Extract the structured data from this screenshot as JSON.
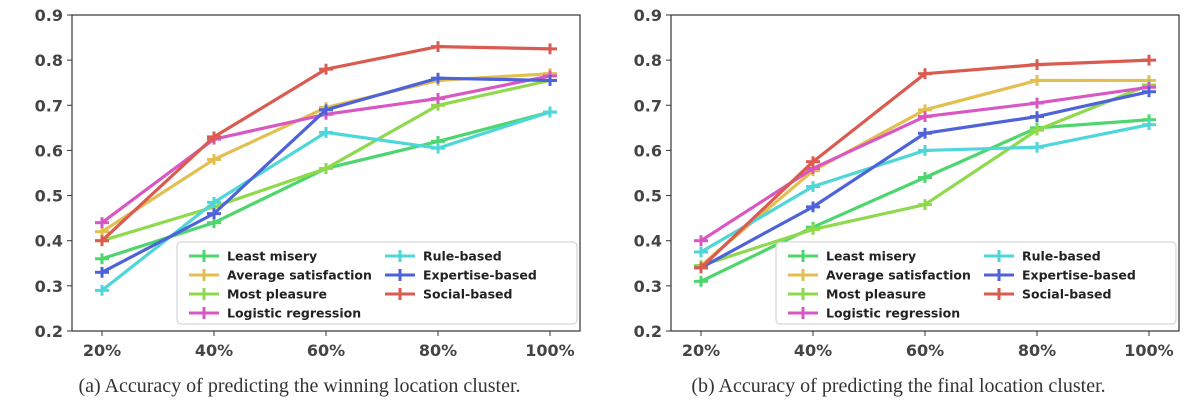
{
  "chart_data": [
    {
      "type": "line",
      "caption": "(a) Accuracy of predicting the winning location cluster.",
      "categories": [
        "20%",
        "40%",
        "60%",
        "80%",
        "100%"
      ],
      "ylim": [
        0.2,
        0.9
      ],
      "yticks": [
        "0.2",
        "0.3",
        "0.4",
        "0.5",
        "0.6",
        "0.7",
        "0.8",
        "0.9"
      ],
      "grid": false,
      "legend_position": "bottom-right",
      "error_bar": 0.012,
      "series": [
        {
          "name": "Least misery",
          "color": "#4dd66e",
          "values": [
            0.36,
            0.44,
            0.56,
            0.62,
            0.685
          ]
        },
        {
          "name": "Average satisfaction",
          "color": "#e3bf50",
          "values": [
            0.42,
            0.58,
            0.695,
            0.755,
            0.77
          ]
        },
        {
          "name": "Most pleasure",
          "color": "#8fd94d",
          "values": [
            0.4,
            0.475,
            0.56,
            0.7,
            0.755
          ]
        },
        {
          "name": "Logistic regression",
          "color": "#d957c2",
          "values": [
            0.44,
            0.625,
            0.68,
            0.715,
            0.765
          ]
        },
        {
          "name": "Rule-based",
          "color": "#4fd6d8",
          "values": [
            0.29,
            0.485,
            0.64,
            0.605,
            0.685
          ]
        },
        {
          "name": "Expertise-based",
          "color": "#4e63d9",
          "values": [
            0.33,
            0.46,
            0.69,
            0.76,
            0.755
          ]
        },
        {
          "name": "Social-based",
          "color": "#da5b50",
          "values": [
            0.4,
            0.63,
            0.78,
            0.83,
            0.825
          ]
        }
      ]
    },
    {
      "type": "line",
      "caption": "(b) Accuracy of predicting the final location cluster.",
      "categories": [
        "20%",
        "40%",
        "60%",
        "80%",
        "100%"
      ],
      "ylim": [
        0.2,
        0.9
      ],
      "yticks": [
        "0.2",
        "0.3",
        "0.4",
        "0.5",
        "0.6",
        "0.7",
        "0.8",
        "0.9"
      ],
      "grid": false,
      "legend_position": "bottom-right",
      "error_bar": 0.012,
      "series": [
        {
          "name": "Least misery",
          "color": "#4dd66e",
          "values": [
            0.31,
            0.43,
            0.54,
            0.65,
            0.668
          ]
        },
        {
          "name": "Average satisfaction",
          "color": "#e3bf50",
          "values": [
            0.345,
            0.555,
            0.69,
            0.755,
            0.755
          ]
        },
        {
          "name": "Most pleasure",
          "color": "#8fd94d",
          "values": [
            0.345,
            0.425,
            0.48,
            0.645,
            0.745
          ]
        },
        {
          "name": "Logistic regression",
          "color": "#d957c2",
          "values": [
            0.4,
            0.56,
            0.675,
            0.705,
            0.74
          ]
        },
        {
          "name": "Rule-based",
          "color": "#4fd6d8",
          "values": [
            0.375,
            0.52,
            0.6,
            0.607,
            0.657
          ]
        },
        {
          "name": "Expertise-based",
          "color": "#4e63d9",
          "values": [
            0.34,
            0.475,
            0.638,
            0.675,
            0.73
          ]
        },
        {
          "name": "Social-based",
          "color": "#da5b50",
          "values": [
            0.34,
            0.575,
            0.77,
            0.79,
            0.8
          ]
        }
      ]
    }
  ]
}
